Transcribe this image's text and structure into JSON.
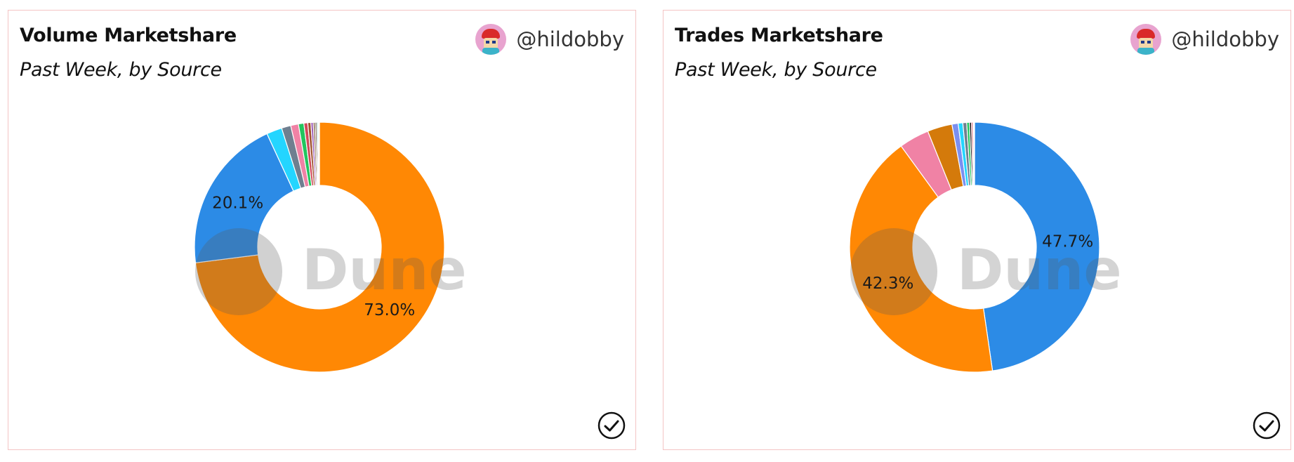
{
  "panels": [
    {
      "title": "Volume Marketshare",
      "subtitle": "Past Week, by Source",
      "author": "@hildobby",
      "watermark": "Dune",
      "avatar_icon": "avatar-icon",
      "status_icon": "check-circle-icon"
    },
    {
      "title": "Trades Marketshare",
      "subtitle": "Past Week, by Source",
      "author": "@hildobby",
      "watermark": "Dune",
      "avatar_icon": "avatar-icon",
      "status_icon": "check-circle-icon"
    }
  ],
  "chart_data": [
    {
      "type": "pie",
      "donut": true,
      "values": [
        73.0,
        20.1,
        2.0,
        1.2,
        1.0,
        0.7,
        0.5,
        0.4,
        0.3,
        0.25,
        0.2,
        0.15,
        0.1,
        0.1
      ],
      "colors": [
        "#ff8804",
        "#2c8be6",
        "#24d5ff",
        "#6f7f90",
        "#f082a5",
        "#22c55e",
        "#d1495b",
        "#a0522d",
        "#9b59b6",
        "#8b6b4a",
        "#5d4037",
        "#16a085",
        "#ffd700",
        "#000080"
      ],
      "data_labels": [
        "73.0%",
        "20.1%",
        "",
        "",
        "",
        "",
        "",
        "",
        "",
        "",
        "",
        "",
        "",
        ""
      ]
    },
    {
      "type": "pie",
      "donut": true,
      "values": [
        47.7,
        42.3,
        3.9,
        3.2,
        0.8,
        0.6,
        0.5,
        0.35,
        0.25,
        0.2,
        0.1,
        0.1
      ],
      "colors": [
        "#2c8be6",
        "#ff8804",
        "#f082a5",
        "#d47a0b",
        "#7b8ff0",
        "#24d5ff",
        "#6f7f90",
        "#22c55e",
        "#111111",
        "#d1495b",
        "#a0522d",
        "#ffd700"
      ],
      "data_labels": [
        "47.7%",
        "42.3%",
        "",
        "",
        "",
        "",
        "",
        "",
        "",
        "",
        "",
        ""
      ]
    }
  ]
}
